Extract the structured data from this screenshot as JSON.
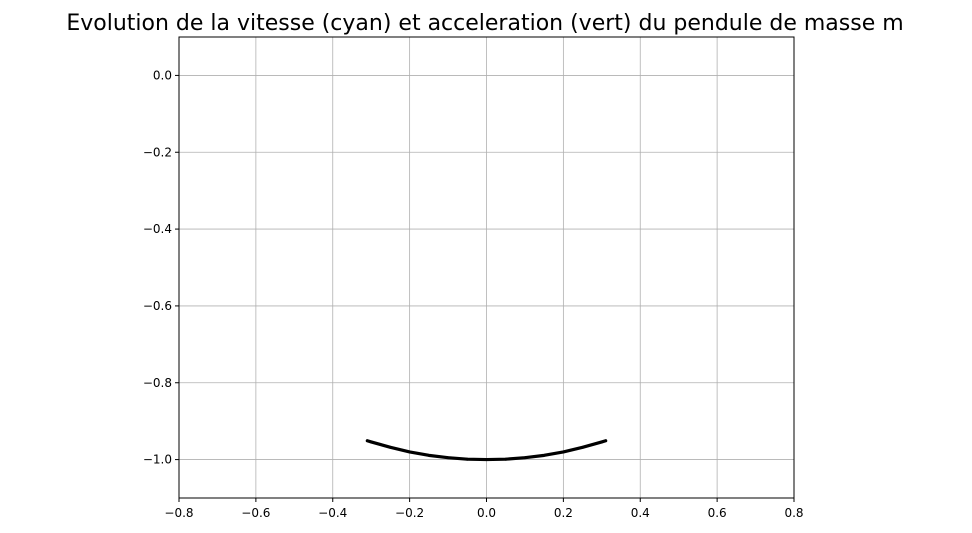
{
  "chart_data": {
    "type": "line",
    "title": "Evolution de la vitesse (cyan) et acceleration (vert) du pendule de masse m",
    "xlabel": "",
    "ylabel": "",
    "xlim": [
      -0.8,
      0.8
    ],
    "ylim": [
      -1.1,
      0.1
    ],
    "xticks": [
      -0.8,
      -0.6,
      -0.4,
      -0.2,
      0.0,
      0.2,
      0.4,
      0.6,
      0.8
    ],
    "xtick_labels": [
      "−0.8",
      "−0.6",
      "−0.4",
      "−0.2",
      "0.0",
      "0.2",
      "0.4",
      "0.6",
      "0.8"
    ],
    "yticks": [
      0.0,
      -0.2,
      -0.4,
      -0.6,
      -0.8,
      -1.0
    ],
    "ytick_labels": [
      "0.0",
      "−0.2",
      "−0.4",
      "−0.6",
      "−0.8",
      "−1.0"
    ],
    "grid": true,
    "colors": {
      "curve": "#000000",
      "grid": "#b0b0b0",
      "axes": "#000000"
    },
    "series": [
      {
        "x": [
          -0.31,
          -0.3,
          -0.25,
          -0.2,
          -0.15,
          -0.1,
          -0.05,
          0.0,
          0.05,
          0.1,
          0.15,
          0.2,
          0.25,
          0.3,
          0.31
        ],
        "y": [
          -0.951,
          -0.954,
          -0.968,
          -0.98,
          -0.989,
          -0.995,
          -0.999,
          -1.0,
          -0.999,
          -0.995,
          -0.989,
          -0.98,
          -0.968,
          -0.954,
          -0.951
        ]
      }
    ]
  }
}
